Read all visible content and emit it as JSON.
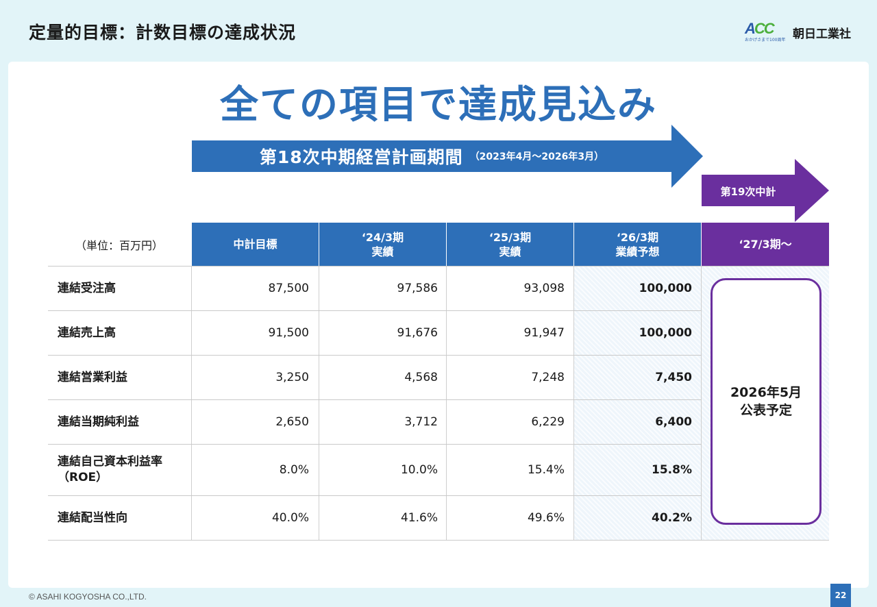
{
  "header": {
    "title": "定量的目標：計数目標の達成状況",
    "logo_mark": "A",
    "logo_mark_green": "CC",
    "logo_tagline": "おかげさまで100周年",
    "company_name": "朝日工業社"
  },
  "headline": "全ての項目で達成見込み",
  "plan_period": {
    "label": "第18次中期経営計画期間",
    "range": "（2023年4月～2026年3月）"
  },
  "next_plan_label": "第19次中計",
  "table": {
    "unit": "（単位：百万円）",
    "columns": [
      {
        "line1": "中計目標",
        "line2": ""
      },
      {
        "line1": "‘24/3期",
        "line2": "実績"
      },
      {
        "line1": "‘25/3期",
        "line2": "実績"
      },
      {
        "line1": "‘26/3期",
        "line2": "業績予想"
      },
      {
        "line1": "‘27/3期～",
        "line2": ""
      }
    ],
    "rows": [
      {
        "line1": "連結受注高",
        "line2": "",
        "values": [
          "87,500",
          "97,586",
          "93,098",
          "100,000"
        ]
      },
      {
        "line1": "連結売上高",
        "line2": "",
        "values": [
          "91,500",
          "91,676",
          "91,947",
          "100,000"
        ]
      },
      {
        "line1": "連結営業利益",
        "line2": "",
        "values": [
          "3,250",
          "4,568",
          "7,248",
          "7,450"
        ]
      },
      {
        "line1": "連結当期純利益",
        "line2": "",
        "values": [
          "2,650",
          "3,712",
          "6,229",
          "6,400"
        ]
      },
      {
        "line1": "連結自己資本利益率",
        "line2": "（ROE）",
        "values": [
          "8.0%",
          "10.0%",
          "15.4%",
          "15.8%"
        ]
      },
      {
        "line1": "連結配当性向",
        "line2": "",
        "values": [
          "40.0%",
          "41.6%",
          "49.6%",
          "40.2%"
        ]
      }
    ],
    "announcement": {
      "line1": "2026年5月",
      "line2": "公表予定"
    }
  },
  "footer": {
    "copyright": "© ASAHI KOGYOSHA CO.,LTD.",
    "page_number": "22"
  },
  "colors": {
    "background": "#e2f4f8",
    "accent_blue": "#2d6fb8",
    "accent_purple": "#6a2f9e"
  }
}
